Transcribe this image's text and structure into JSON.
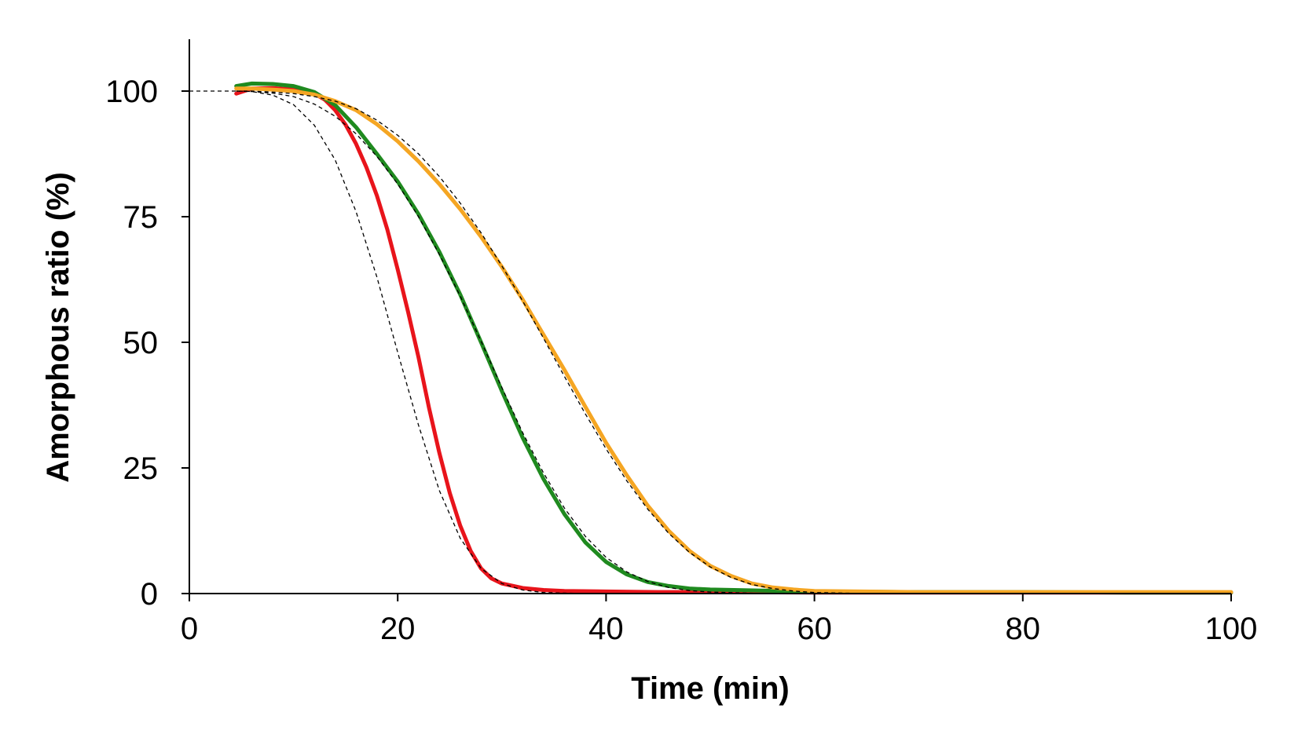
{
  "chart_data": {
    "type": "line",
    "title": "",
    "xlabel": "Time (min)",
    "ylabel": "Amorphous ratio (%)",
    "xlim": [
      0,
      100
    ],
    "ylim": [
      0,
      110
    ],
    "xticks": [
      0,
      20,
      40,
      60,
      80,
      100
    ],
    "yticks": [
      0,
      25,
      50,
      75,
      100
    ],
    "grid": false,
    "legend": "none",
    "series": [
      {
        "color": "#e8141b",
        "x": [
          4.5,
          6,
          8,
          10,
          12,
          13,
          14,
          15,
          16,
          17,
          18,
          19,
          20,
          21,
          22,
          23,
          24,
          25,
          26,
          27,
          28,
          29,
          30,
          32,
          34,
          36,
          40,
          45,
          50,
          60,
          70,
          80,
          90,
          100
        ],
        "y": [
          99.5,
          100.5,
          100.6,
          100.3,
          99.5,
          98.3,
          96.2,
          93.3,
          89.5,
          84.8,
          79.2,
          72.5,
          64.5,
          56,
          47,
          37,
          28,
          20,
          13.5,
          8.5,
          5,
          3,
          2,
          1.1,
          0.7,
          0.5,
          0.4,
          0.3,
          0.3,
          0.2,
          0.2,
          0.2,
          0.2,
          0.2
        ]
      },
      {
        "color": "#1f8a1f",
        "x": [
          4.5,
          6,
          8,
          10,
          12,
          14,
          16,
          18,
          20,
          22,
          24,
          26,
          28,
          30,
          32,
          34,
          36,
          38,
          40,
          42,
          44,
          46,
          48,
          50,
          55,
          60,
          70,
          80,
          90,
          100
        ],
        "y": [
          101,
          101.5,
          101.4,
          101,
          99.8,
          97.2,
          92.8,
          87.5,
          82,
          75.5,
          68,
          59.5,
          50,
          40.3,
          31,
          22.8,
          15.8,
          10.2,
          6.3,
          3.8,
          2.3,
          1.5,
          1,
          0.8,
          0.6,
          0.4,
          0.3,
          0.3,
          0.2,
          0.2
        ]
      },
      {
        "color": "#f5a623",
        "x": [
          4.5,
          6,
          8,
          10,
          12,
          14,
          16,
          18,
          20,
          22,
          24,
          26,
          28,
          30,
          32,
          34,
          36,
          38,
          40,
          42,
          44,
          46,
          48,
          50,
          52,
          54,
          56,
          58,
          60,
          70,
          80,
          90,
          100
        ],
        "y": [
          100.5,
          100.5,
          100.3,
          100,
          99.3,
          98,
          96.2,
          93.4,
          90,
          86,
          81.5,
          76.5,
          71,
          65,
          58.5,
          51.5,
          44.5,
          37.2,
          30,
          23.5,
          17.5,
          12.5,
          8.5,
          5.5,
          3.5,
          2,
          1.2,
          0.8,
          0.5,
          0.3,
          0.3,
          0.3,
          0.3
        ]
      }
    ],
    "fits": [
      {
        "x": [
          0,
          4.5,
          6,
          8,
          10,
          12,
          14,
          16,
          18,
          20,
          22,
          24,
          26,
          28,
          30,
          32,
          34,
          36,
          38,
          40,
          45,
          50
        ],
        "y": [
          100,
          100,
          99.9,
          99.2,
          97.3,
          93.2,
          86.3,
          76,
          63,
          48,
          33.5,
          20.5,
          11,
          5,
          2,
          0.7,
          0.2,
          0.1,
          0,
          0,
          0,
          0
        ]
      },
      {
        "x": [
          4.5,
          6,
          8,
          10,
          12,
          14,
          16,
          18,
          20,
          22,
          24,
          26,
          28,
          30,
          32,
          34,
          36,
          38,
          40,
          42,
          44,
          46,
          48,
          50,
          55,
          60
        ],
        "y": [
          100,
          99.9,
          99.6,
          98.9,
          97.4,
          95,
          91.5,
          87,
          81.5,
          75,
          67.5,
          59.2,
          50.2,
          41,
          32,
          24,
          17,
          11.4,
          7.2,
          4.3,
          2.4,
          1.2,
          0.6,
          0.3,
          0,
          0
        ]
      },
      {
        "x": [
          4.5,
          6,
          8,
          10,
          12,
          14,
          16,
          18,
          20,
          22,
          24,
          26,
          28,
          30,
          32,
          34,
          36,
          38,
          40,
          42,
          44,
          46,
          48,
          50,
          52,
          54,
          56,
          58,
          60,
          65,
          70
        ],
        "y": [
          100,
          100,
          99.8,
          99.5,
          98.9,
          98,
          96.5,
          94.2,
          91.2,
          87.5,
          83,
          77.7,
          71.8,
          65.2,
          58.2,
          50.8,
          43.2,
          35.8,
          28.8,
          22.4,
          16.8,
          12,
          8.2,
          5.3,
          3.2,
          1.8,
          1,
          0.5,
          0.2,
          0,
          0
        ]
      }
    ]
  }
}
